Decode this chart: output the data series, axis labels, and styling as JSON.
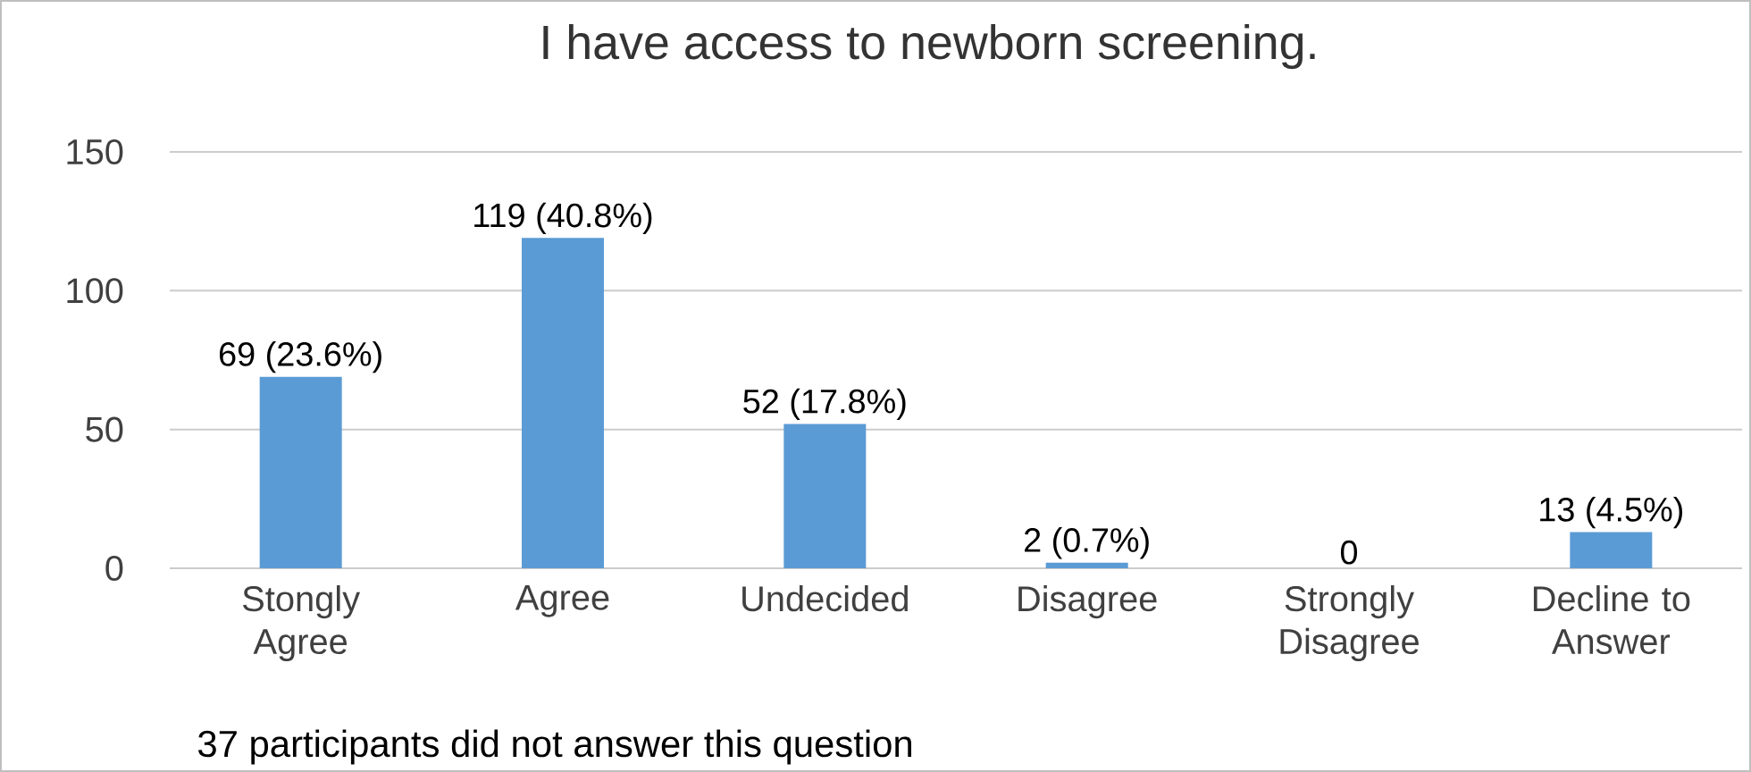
{
  "chart_data": {
    "type": "bar",
    "title": "I have access to newborn screening.",
    "categories": [
      "Stongly Agree",
      "Agree",
      "Undecided",
      "Disagree",
      "Strongly Disagree",
      "Decline to Answer"
    ],
    "values": [
      69,
      119,
      52,
      2,
      0,
      13
    ],
    "value_labels": [
      "69 (23.6%)",
      "119 (40.8%)",
      "52 (17.8%)",
      "2 (0.7%)",
      "0",
      "13 (4.5%)"
    ],
    "color": "#5b9bd5",
    "ylim": [
      0,
      150
    ],
    "yticks": [
      0,
      50,
      100,
      150
    ],
    "grid": "y",
    "annotations": [
      "37 participants did not answer this question"
    ]
  }
}
